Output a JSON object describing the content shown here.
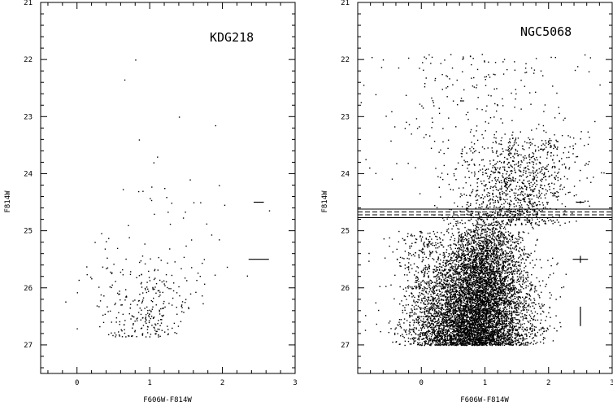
{
  "chart_data": [
    {
      "type": "scatter",
      "title": "KDG218",
      "xlabel": "F606W-F814W",
      "ylabel": "F814W",
      "xlim": [
        -0.5,
        3
      ],
      "ylim": [
        27.5,
        21
      ],
      "x_ticks": [
        "0",
        "1",
        "2",
        "3"
      ],
      "y_ticks": [
        "21",
        "22",
        "23",
        "24",
        "25",
        "26",
        "27"
      ],
      "approx_star_count": 300,
      "sample_points": [
        [
          0.8,
          22.0
        ],
        [
          0.65,
          22.35
        ],
        [
          0.85,
          23.4
        ],
        [
          1.4,
          23.0
        ],
        [
          1.9,
          23.15
        ],
        [
          1.1,
          23.7
        ],
        [
          1.05,
          23.8
        ],
        [
          1.55,
          24.1
        ],
        [
          1.95,
          24.2
        ],
        [
          1.2,
          24.25
        ],
        [
          0.9,
          24.3
        ],
        [
          1.6,
          24.5
        ],
        [
          0.7,
          24.9
        ],
        [
          0.55,
          25.3
        ],
        [
          1.95,
          25.15
        ]
      ],
      "cloud_region": {
        "x": [
          0.2,
          2.1
        ],
        "y": [
          25.5,
          26.8
        ]
      },
      "error_bars": [
        {
          "x": 2.5,
          "y": 24.5,
          "xerr": 0.07,
          "yerr": 0.0
        },
        {
          "x": 2.5,
          "y": 25.5,
          "xerr": 0.14,
          "yerr": 0.0
        }
      ],
      "guide_lines": []
    },
    {
      "type": "scatter",
      "title": "NGC5068",
      "xlabel": "F606W-F814W",
      "ylabel": "F814W",
      "xlim": [
        -1,
        3
      ],
      "ylim": [
        27.5,
        21
      ],
      "x_ticks": [
        "0",
        "1",
        "2",
        "3"
      ],
      "y_ticks": [
        "21",
        "22",
        "23",
        "24",
        "25",
        "26",
        "27"
      ],
      "approx_star_count": 9000,
      "cloud_region": {
        "x": [
          -0.3,
          2.5
        ],
        "y": [
          22.2,
          27.0
        ]
      },
      "guide_lines": [
        {
          "y": 24.62,
          "style": "solid"
        },
        {
          "y": 24.67,
          "style": "dashed"
        },
        {
          "y": 24.72,
          "style": "dashed"
        },
        {
          "y": 24.77,
          "style": "solid"
        }
      ],
      "error_bars": [
        {
          "x": 2.5,
          "y": 24.5,
          "xerr": 0.06,
          "yerr": 0.02
        },
        {
          "x": 2.5,
          "y": 25.5,
          "xerr": 0.12,
          "yerr": 0.06
        },
        {
          "x": 2.5,
          "y": 26.5,
          "xerr": 0.0,
          "yerr": 0.17
        }
      ]
    }
  ]
}
